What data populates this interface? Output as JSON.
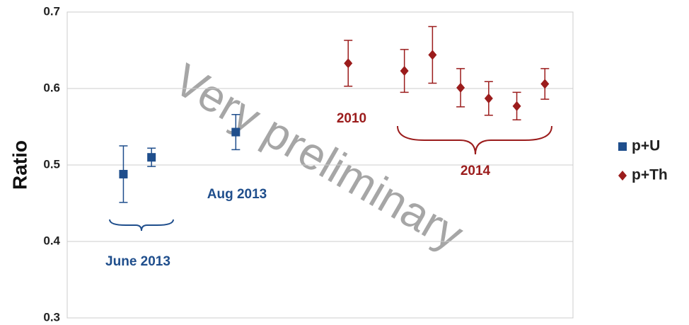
{
  "chart_data": {
    "type": "scatter",
    "ylabel": "Ratio",
    "ylim": [
      0.3,
      0.7
    ],
    "yticks": [
      0.3,
      0.4,
      0.5,
      0.6,
      0.7
    ],
    "grid": true,
    "xlim": [
      0,
      18
    ],
    "series": [
      {
        "name": "p+U",
        "color": "#1f4e8c",
        "marker": "square",
        "x": [
          2,
          3,
          6
        ],
        "values": [
          0.488,
          0.51,
          0.543
        ],
        "errors": [
          0.037,
          0.012,
          0.023
        ]
      },
      {
        "name": "p+Th",
        "color": "#9b1c1c",
        "marker": "diamond",
        "x": [
          10,
          12,
          13,
          14,
          15,
          16,
          17
        ],
        "values": [
          0.633,
          0.623,
          0.644,
          0.601,
          0.587,
          0.577,
          0.606
        ],
        "errors": [
          0.03,
          0.028,
          0.037,
          0.025,
          0.022,
          0.018,
          0.02
        ]
      }
    ],
    "annotations": [
      "June 2013",
      "Aug 2013",
      "2010",
      "2014",
      "Very preliminary"
    ],
    "legend": "right"
  }
}
